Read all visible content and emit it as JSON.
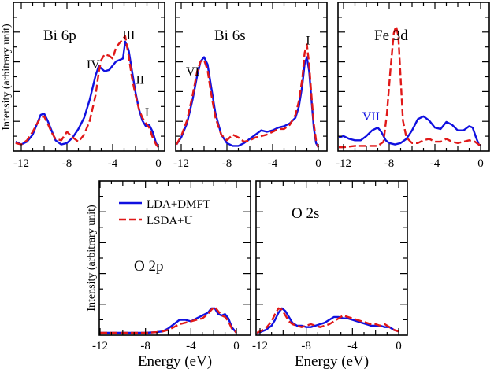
{
  "chart_data": [
    {
      "type": "line",
      "panel": "bi6p",
      "label": "Bi 6p",
      "xlim": [
        -12,
        0
      ],
      "ylim": [
        0,
        1
      ],
      "xticks": [
        -12,
        -8,
        -4,
        0
      ],
      "annotations": [
        {
          "text": "IV",
          "x": -5.7,
          "y": 0.57
        },
        {
          "text": "III",
          "x": -2.6,
          "y": 0.78
        },
        {
          "text": "II",
          "x": -1.6,
          "y": 0.46
        },
        {
          "text": "I",
          "x": -1.0,
          "y": 0.23
        }
      ],
      "series": [
        {
          "name": "LDA+DMFT",
          "x": [
            -12.5,
            -12,
            -11.5,
            -11,
            -10.6,
            -10.3,
            -10,
            -9.7,
            -9.3,
            -9,
            -8.5,
            -8,
            -7.5,
            -7,
            -6.5,
            -6,
            -5.5,
            -5.2,
            -5,
            -4.7,
            -4.3,
            -4,
            -3.7,
            -3.4,
            -3.1,
            -2.9,
            -2.6,
            -2.3,
            -2,
            -1.7,
            -1.4,
            -1.1,
            -0.8,
            -0.5,
            -0.2,
            0
          ],
          "y": [
            0.05,
            0.03,
            0.05,
            0.1,
            0.18,
            0.24,
            0.25,
            0.2,
            0.12,
            0.06,
            0.03,
            0.04,
            0.08,
            0.14,
            0.22,
            0.35,
            0.52,
            0.59,
            0.57,
            0.55,
            0.56,
            0.59,
            0.62,
            0.63,
            0.64,
            0.76,
            0.7,
            0.55,
            0.4,
            0.28,
            0.2,
            0.16,
            0.17,
            0.12,
            0.04,
            0.01
          ]
        },
        {
          "name": "LSDA+U",
          "x": [
            -12.5,
            -12,
            -11.5,
            -11,
            -10.6,
            -10.3,
            -10,
            -9.7,
            -9.3,
            -9,
            -8.5,
            -8,
            -7.5,
            -7,
            -6.5,
            -6,
            -5.5,
            -5.2,
            -5,
            -4.7,
            -4.3,
            -4,
            -3.7,
            -3.4,
            -3.1,
            -2.9,
            -2.6,
            -2.3,
            -2,
            -1.7,
            -1.4,
            -1.1,
            -0.8,
            -0.5,
            -0.2,
            0
          ],
          "y": [
            0.04,
            0.03,
            0.06,
            0.12,
            0.18,
            0.22,
            0.23,
            0.18,
            0.11,
            0.07,
            0.06,
            0.12,
            0.08,
            0.05,
            0.1,
            0.2,
            0.38,
            0.55,
            0.63,
            0.67,
            0.66,
            0.64,
            0.72,
            0.75,
            0.78,
            0.8,
            0.66,
            0.5,
            0.38,
            0.28,
            0.22,
            0.18,
            0.15,
            0.08,
            0.03,
            0.01
          ]
        }
      ]
    },
    {
      "type": "line",
      "panel": "bi6s",
      "label": "Bi 6s",
      "xlim": [
        -12,
        0
      ],
      "ylim": [
        0,
        1
      ],
      "xticks": [
        -12,
        -8,
        -4,
        0
      ],
      "annotations": [
        {
          "text": "VI",
          "x": -11.0,
          "y": 0.52
        },
        {
          "text": "I",
          "x": -0.9,
          "y": 0.74
        }
      ],
      "series": [
        {
          "name": "LDA+DMFT",
          "x": [
            -12.6,
            -12,
            -11.5,
            -11,
            -10.6,
            -10.3,
            -10,
            -9.7,
            -9.4,
            -9,
            -8.5,
            -8,
            -7.5,
            -7,
            -6.5,
            -6,
            -5.5,
            -5,
            -4.5,
            -4,
            -3.5,
            -3,
            -2.5,
            -2,
            -1.7,
            -1.4,
            -1.2,
            -1,
            -0.8,
            -0.6,
            -0.4,
            -0.2,
            0
          ],
          "y": [
            0.03,
            0.08,
            0.18,
            0.35,
            0.52,
            0.62,
            0.65,
            0.6,
            0.45,
            0.25,
            0.1,
            0.04,
            0.02,
            0.02,
            0.04,
            0.07,
            0.1,
            0.13,
            0.12,
            0.13,
            0.15,
            0.16,
            0.18,
            0.22,
            0.3,
            0.45,
            0.6,
            0.65,
            0.55,
            0.35,
            0.15,
            0.04,
            0.01
          ]
        },
        {
          "name": "LSDA+U",
          "x": [
            -12.6,
            -12,
            -11.5,
            -11,
            -10.6,
            -10.3,
            -10,
            -9.7,
            -9.4,
            -9,
            -8.5,
            -8,
            -7.5,
            -7,
            -6.5,
            -6,
            -5.5,
            -5,
            -4.5,
            -4,
            -3.5,
            -3,
            -2.5,
            -2,
            -1.7,
            -1.4,
            -1.2,
            -1,
            -0.8,
            -0.6,
            -0.4,
            -0.2,
            0
          ],
          "y": [
            0.03,
            0.09,
            0.2,
            0.38,
            0.55,
            0.62,
            0.63,
            0.56,
            0.4,
            0.22,
            0.1,
            0.06,
            0.1,
            0.08,
            0.05,
            0.06,
            0.08,
            0.09,
            0.1,
            0.12,
            0.14,
            0.14,
            0.17,
            0.24,
            0.34,
            0.5,
            0.68,
            0.74,
            0.6,
            0.38,
            0.18,
            0.06,
            0.01
          ]
        }
      ]
    },
    {
      "type": "line",
      "panel": "fe3d",
      "label": "Fe 3d",
      "xlim": [
        -12,
        0
      ],
      "ylim": [
        0,
        1
      ],
      "xticks": [
        -12,
        -8,
        -4,
        0
      ],
      "annotations": [
        {
          "text": "VII",
          "x": -9.6,
          "y": 0.2,
          "color": "#1010e0"
        }
      ],
      "series": [
        {
          "name": "LDA+DMFT",
          "x": [
            -12.6,
            -12,
            -11.5,
            -11,
            -10.5,
            -10,
            -9.5,
            -9,
            -8.7,
            -8.3,
            -8,
            -7.5,
            -7,
            -6.5,
            -6,
            -5.5,
            -5,
            -4.5,
            -4,
            -3.5,
            -3,
            -2.5,
            -2,
            -1.5,
            -1,
            -0.7,
            -0.4,
            -0.1
          ],
          "y": [
            0.08,
            0.09,
            0.07,
            0.06,
            0.06,
            0.09,
            0.13,
            0.15,
            0.12,
            0.06,
            0.04,
            0.03,
            0.04,
            0.07,
            0.13,
            0.21,
            0.23,
            0.2,
            0.15,
            0.14,
            0.19,
            0.17,
            0.13,
            0.13,
            0.16,
            0.15,
            0.08,
            0.02
          ]
        },
        {
          "name": "LSDA+U",
          "x": [
            -12.6,
            -12,
            -11,
            -10,
            -9,
            -8.5,
            -8.2,
            -7.9,
            -7.6,
            -7.4,
            -7.2,
            -7,
            -6.8,
            -6.5,
            -6,
            -5.5,
            -5,
            -4.5,
            -4,
            -3.5,
            -3,
            -2.5,
            -2,
            -1.5,
            -1,
            -0.5,
            0
          ],
          "y": [
            0.01,
            0.01,
            0.02,
            0.02,
            0.02,
            0.05,
            0.25,
            0.55,
            0.82,
            0.87,
            0.8,
            0.5,
            0.2,
            0.08,
            0.04,
            0.04,
            0.06,
            0.07,
            0.05,
            0.05,
            0.07,
            0.05,
            0.04,
            0.05,
            0.06,
            0.05,
            0.02
          ]
        }
      ]
    },
    {
      "type": "line",
      "panel": "o2p",
      "label": "O 2p",
      "xlim": [
        -12,
        0
      ],
      "ylim": [
        0,
        1
      ],
      "xticks": [
        -12,
        -8,
        -4,
        0
      ],
      "legend": {
        "placement": "top-left",
        "entries": [
          "LDA+DMFT",
          "LSDA+U"
        ]
      },
      "xlabel": "Energy (eV)",
      "series": [
        {
          "name": "LDA+DMFT",
          "x": [
            -12.5,
            -10,
            -8,
            -7,
            -6.5,
            -6,
            -5.5,
            -5,
            -4.5,
            -4,
            -3.5,
            -3,
            -2.5,
            -2.2,
            -1.9,
            -1.6,
            -1.3,
            -1,
            -0.7,
            -0.4,
            -0.1,
            0
          ],
          "y": [
            0,
            0,
            0,
            0.005,
            0.01,
            0.03,
            0.06,
            0.09,
            0.09,
            0.08,
            0.1,
            0.12,
            0.14,
            0.17,
            0.17,
            0.13,
            0.12,
            0.13,
            0.1,
            0.04,
            0.01,
            0
          ]
        },
        {
          "name": "LSDA+U",
          "x": [
            -12.5,
            -10,
            -8,
            -7,
            -6.5,
            -6,
            -5.5,
            -5,
            -4.5,
            -4,
            -3.5,
            -3,
            -2.5,
            -2.2,
            -1.9,
            -1.6,
            -1.3,
            -1,
            -0.7,
            -0.4,
            -0.1,
            0
          ],
          "y": [
            0,
            0,
            0,
            0.005,
            0.01,
            0.02,
            0.04,
            0.06,
            0.07,
            0.08,
            0.09,
            0.1,
            0.13,
            0.16,
            0.18,
            0.15,
            0.12,
            0.11,
            0.08,
            0.03,
            0.01,
            0
          ]
        }
      ]
    },
    {
      "type": "line",
      "panel": "o2s",
      "label": "O 2s",
      "xlim": [
        -12,
        0
      ],
      "ylim": [
        0,
        1
      ],
      "xticks": [
        -12,
        -8,
        -4,
        0
      ],
      "xlabel": "Energy (eV)",
      "series": [
        {
          "name": "LDA+DMFT",
          "x": [
            -12.5,
            -12,
            -11.5,
            -11,
            -10.7,
            -10.4,
            -10.1,
            -9.8,
            -9.5,
            -9.2,
            -8.8,
            -8.4,
            -8,
            -7.6,
            -7.2,
            -6.8,
            -6.4,
            -6,
            -5.6,
            -5.2,
            -4.8,
            -4.4,
            -4,
            -3.6,
            -3.2,
            -2.8,
            -2.4,
            -2,
            -1.6,
            -1.2,
            -0.8,
            -0.4,
            0
          ],
          "y": [
            0,
            0.005,
            0.02,
            0.05,
            0.09,
            0.14,
            0.17,
            0.15,
            0.11,
            0.07,
            0.05,
            0.05,
            0.04,
            0.04,
            0.05,
            0.06,
            0.07,
            0.09,
            0.11,
            0.11,
            0.1,
            0.1,
            0.09,
            0.08,
            0.07,
            0.06,
            0.05,
            0.05,
            0.05,
            0.04,
            0.04,
            0.02,
            0.01
          ]
        },
        {
          "name": "LSDA+U",
          "x": [
            -12.5,
            -12,
            -11.5,
            -11,
            -10.7,
            -10.4,
            -10.1,
            -9.8,
            -9.5,
            -9.2,
            -8.8,
            -8.4,
            -8,
            -7.6,
            -7.2,
            -6.8,
            -6.4,
            -6,
            -5.6,
            -5.2,
            -4.8,
            -4.4,
            -4,
            -3.6,
            -3.2,
            -2.8,
            -2.4,
            -2,
            -1.6,
            -1.2,
            -0.8,
            -0.4,
            0
          ],
          "y": [
            0,
            0.01,
            0.03,
            0.08,
            0.13,
            0.17,
            0.16,
            0.12,
            0.08,
            0.06,
            0.05,
            0.04,
            0.05,
            0.06,
            0.05,
            0.04,
            0.05,
            0.06,
            0.08,
            0.1,
            0.12,
            0.11,
            0.1,
            0.09,
            0.08,
            0.07,
            0.06,
            0.06,
            0.05,
            0.06,
            0.04,
            0.02,
            0.01
          ]
        }
      ]
    }
  ],
  "shared": {
    "ylabel": "Intensity (arbitrary unit)",
    "colors": {
      "lda_dmft": "#1010e0",
      "lsda_u": "#e01818"
    }
  }
}
